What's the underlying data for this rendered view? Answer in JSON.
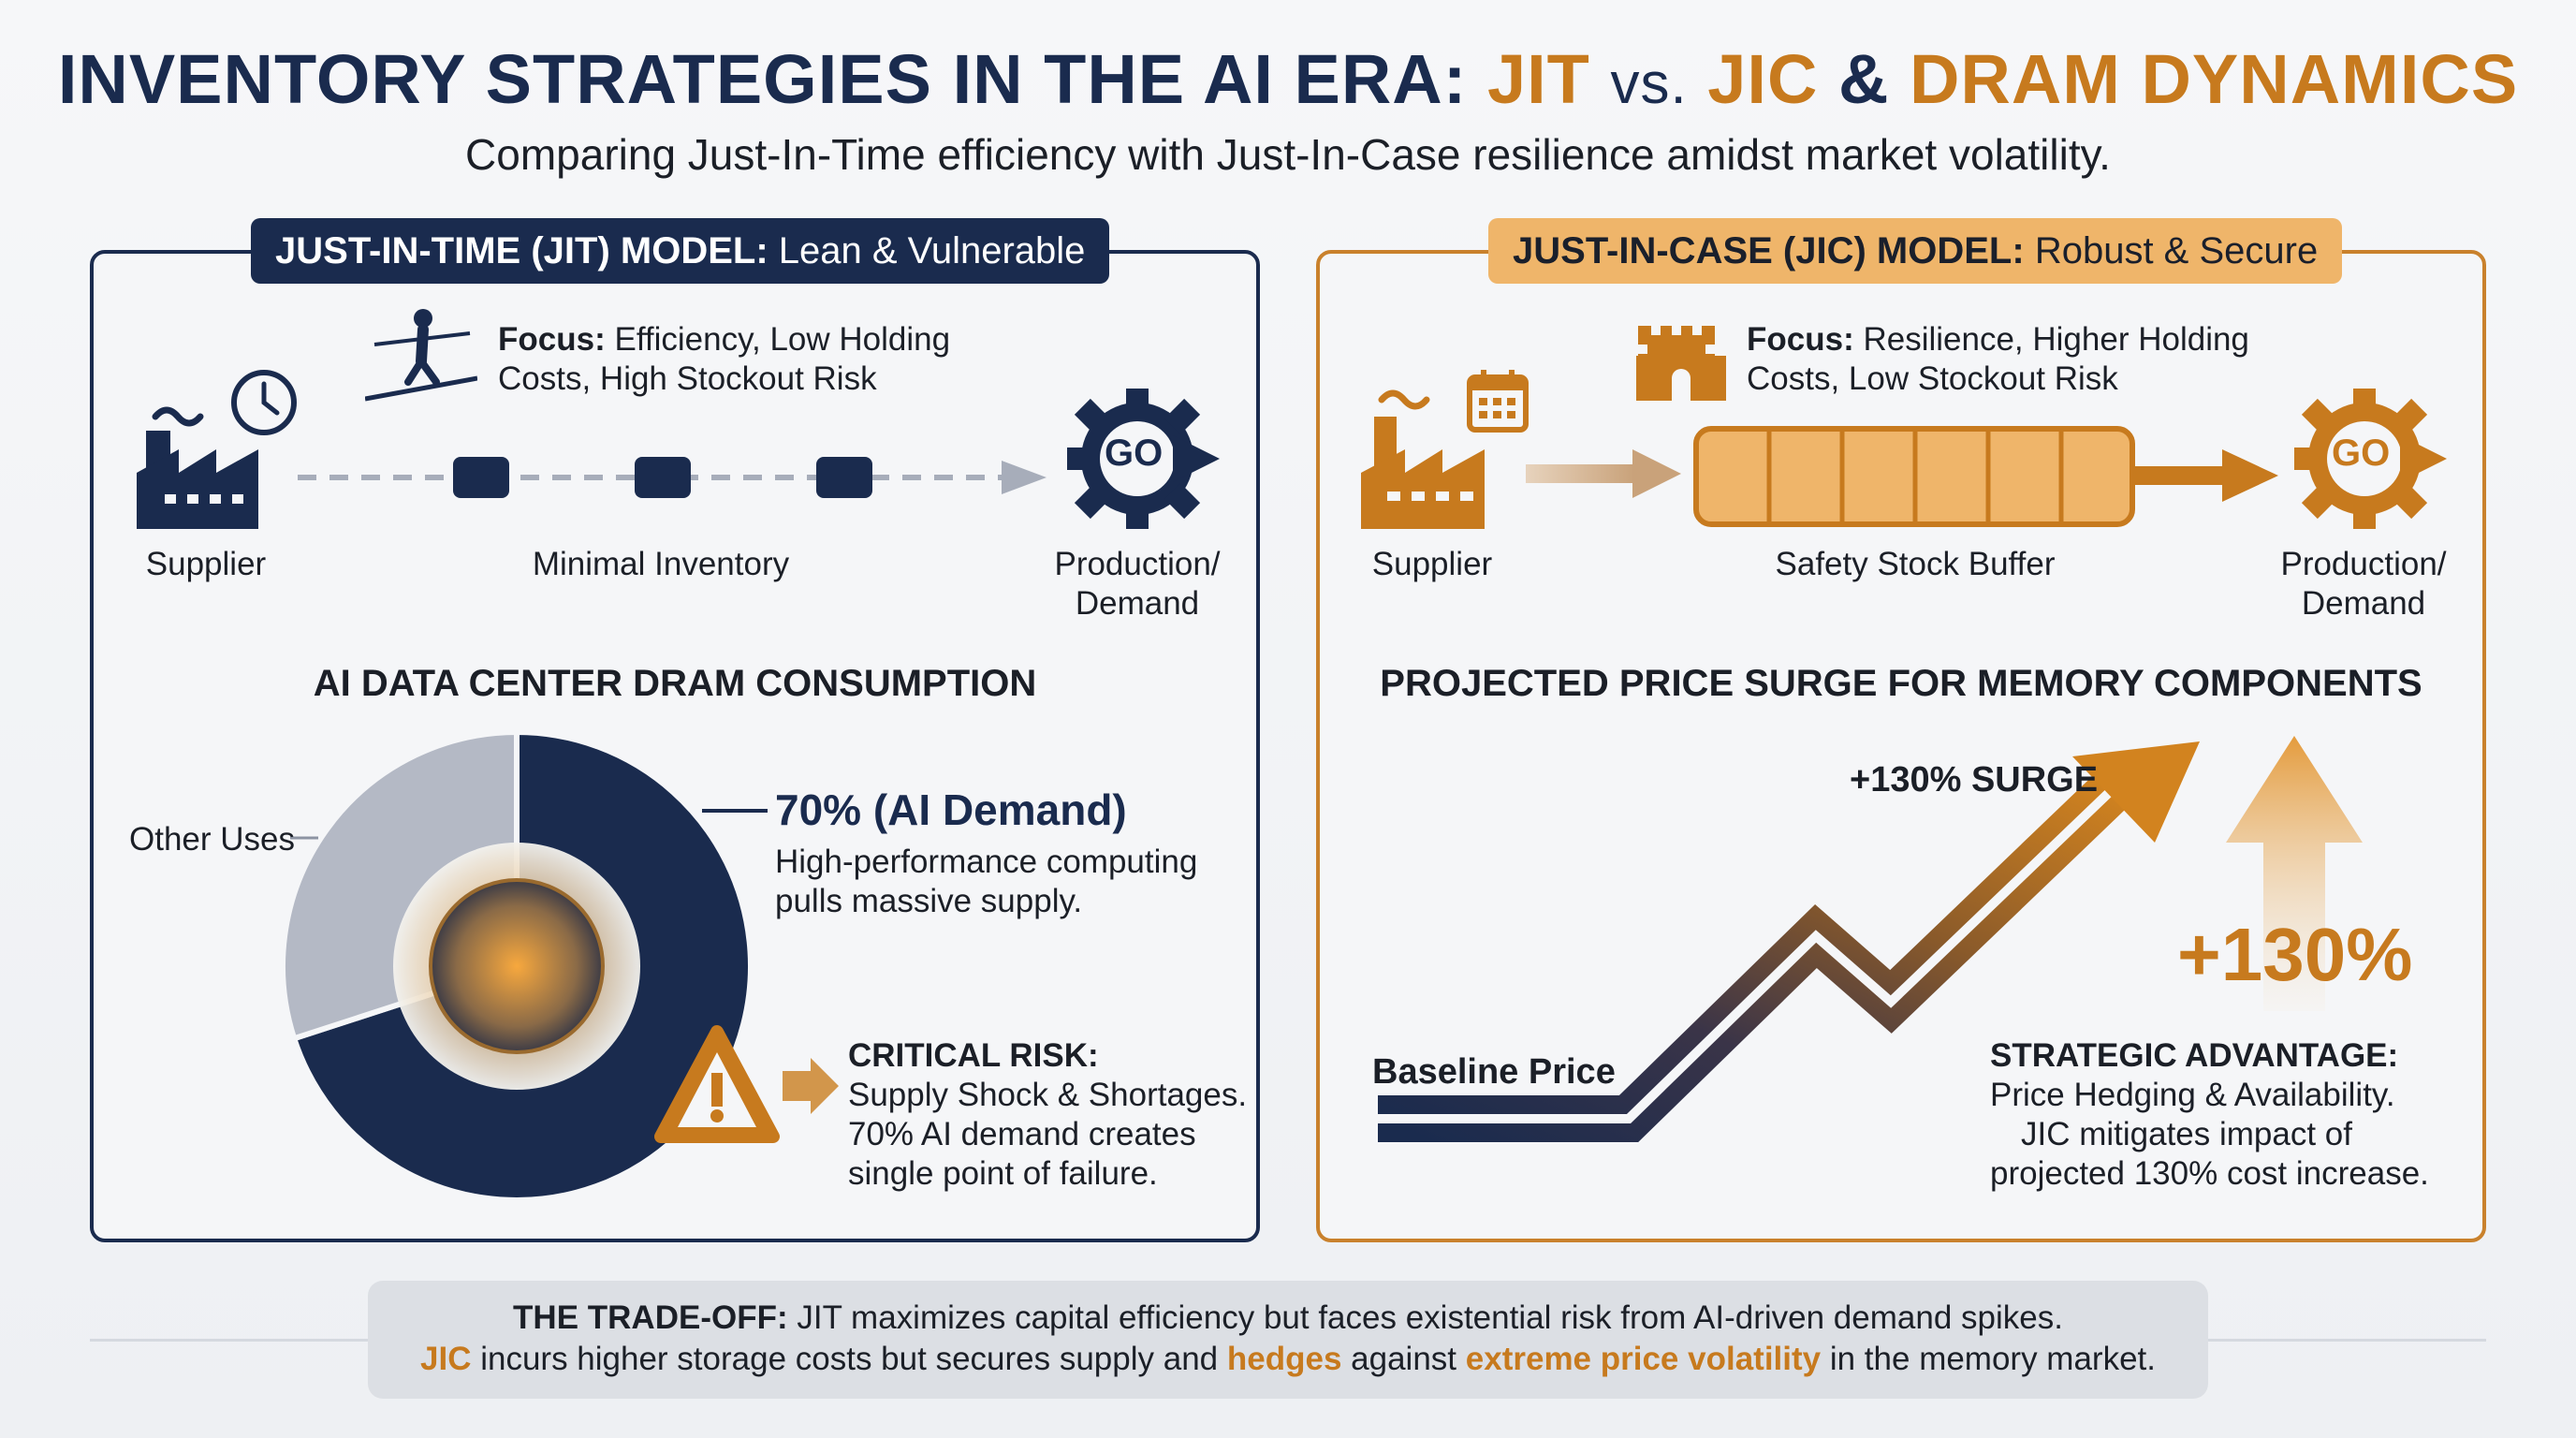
{
  "title": {
    "part1": "INVENTORY STRATEGIES IN THE AI ERA:",
    "jit": "JIT",
    "vs": "vs.",
    "jic": "JIC",
    "amp": "&",
    "part2": "DRAM DYNAMICS"
  },
  "subtitle": "Comparing Just-In-Time efficiency with Just-In-Case resilience amidst market volatility.",
  "jit": {
    "badge_bold": "JUST-IN-TIME (JIT) MODEL:",
    "badge_rest": "Lean & Vulnerable",
    "focus_label": "Focus:",
    "focus_line1": "Efficiency, Low Holding",
    "focus_line2": "Costs, High Stockout Risk",
    "supplier": "Supplier",
    "middle": "Minimal Inventory",
    "prod_line1": "Production/",
    "prod_line2": "Demand",
    "go": "GO",
    "chart_title": "AI DATA CENTER DRAM CONSUMPTION",
    "other_uses": "Other Uses",
    "ai_demand": "70% (AI Demand)",
    "ai_line1": "High-performance computing",
    "ai_line2": "pulls massive supply.",
    "risk_head": "CRITICAL RISK:",
    "risk_line1": "Supply Shock & Shortages.",
    "risk_line2": "70% AI demand creates",
    "risk_line3": "single point of failure."
  },
  "jic": {
    "badge_bold": "JUST-IN-CASE (JIC) MODEL:",
    "badge_rest": "Robust & Secure",
    "focus_label": "Focus:",
    "focus_line1": "Resilience, Higher Holding",
    "focus_line2": "Costs, Low Stockout Risk",
    "supplier": "Supplier",
    "middle": "Safety Stock Buffer",
    "prod_line1": "Production/",
    "prod_line2": "Demand",
    "go": "GO",
    "chart_title": "PROJECTED PRICE SURGE FOR MEMORY COMPONENTS",
    "surge_label": "+130% SURGE",
    "surge_pct": "+130%",
    "baseline": "Baseline Price",
    "adv_head": "STRATEGIC ADVANTAGE:",
    "adv_line1": "Price Hedging & Availability.",
    "adv_line2": "JIC mitigates impact of",
    "adv_line3": "projected 130% cost increase."
  },
  "footer": {
    "l1_bold": "THE TRADE-OFF:",
    "l1_rest": "JIT maximizes capital efficiency but faces existential risk from AI-driven demand spikes.",
    "l2_jic": "JIC",
    "l2_a": "incurs higher storage costs but secures supply and",
    "l2_hedges": "hedges",
    "l2_b": "against",
    "l2_vol": "extreme price volatility",
    "l2_c": "in the memory market."
  },
  "chart_data": {
    "type": "pie",
    "title": "AI DATA CENTER DRAM CONSUMPTION",
    "categories": [
      "AI Demand",
      "Other Uses"
    ],
    "values": [
      70,
      30
    ],
    "colors": [
      "#1a2b4e",
      "#b4b9c5"
    ]
  },
  "colors": {
    "navy": "#1a2b4e",
    "gold": "#c77a1e",
    "light_gold": "#efb56a"
  }
}
